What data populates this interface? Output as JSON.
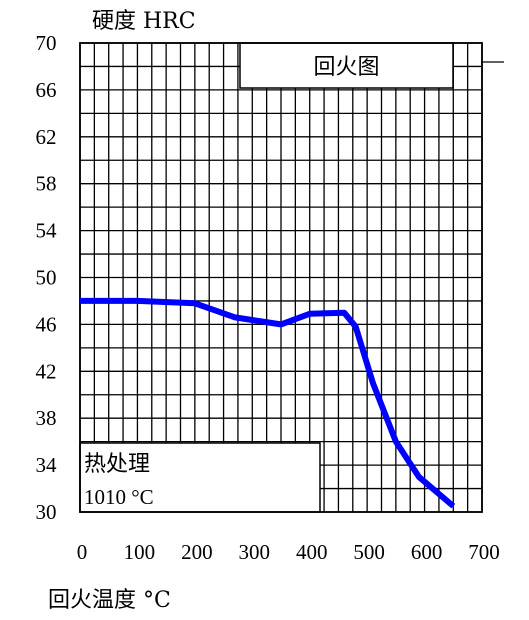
{
  "chart_data": {
    "type": "line",
    "ylabel": "硬度 HRC",
    "xlabel": "回火温度 °C",
    "xlim": [
      0,
      700
    ],
    "ylim": [
      30,
      70
    ],
    "x_ticks": [
      0,
      100,
      200,
      300,
      400,
      500,
      600,
      700
    ],
    "x_tick_labels": [
      "0",
      "100",
      "200",
      "300",
      "400",
      "500",
      "600",
      "700"
    ],
    "y_ticks": [
      30,
      34,
      38,
      42,
      46,
      50,
      54,
      58,
      62,
      66,
      70
    ],
    "y_tick_labels": [
      "30",
      "34",
      "38",
      "42",
      "46",
      "50",
      "54",
      "58",
      "62",
      "66",
      "70"
    ],
    "grid": true,
    "grid_minor_step_x": 25,
    "grid_minor_step_y": 2,
    "series": [
      {
        "color": "#0000ff",
        "x": [
          0,
          100,
          200,
          270,
          350,
          400,
          460,
          480,
          510,
          550,
          590,
          650
        ],
        "y": [
          48.0,
          48.0,
          47.8,
          46.6,
          46.0,
          46.9,
          47.0,
          45.8,
          41.0,
          36.0,
          33.0,
          30.5
        ]
      }
    ],
    "title_box_text": "回火图",
    "annotation_text": [
      "热处理",
      "1010 °C"
    ]
  }
}
